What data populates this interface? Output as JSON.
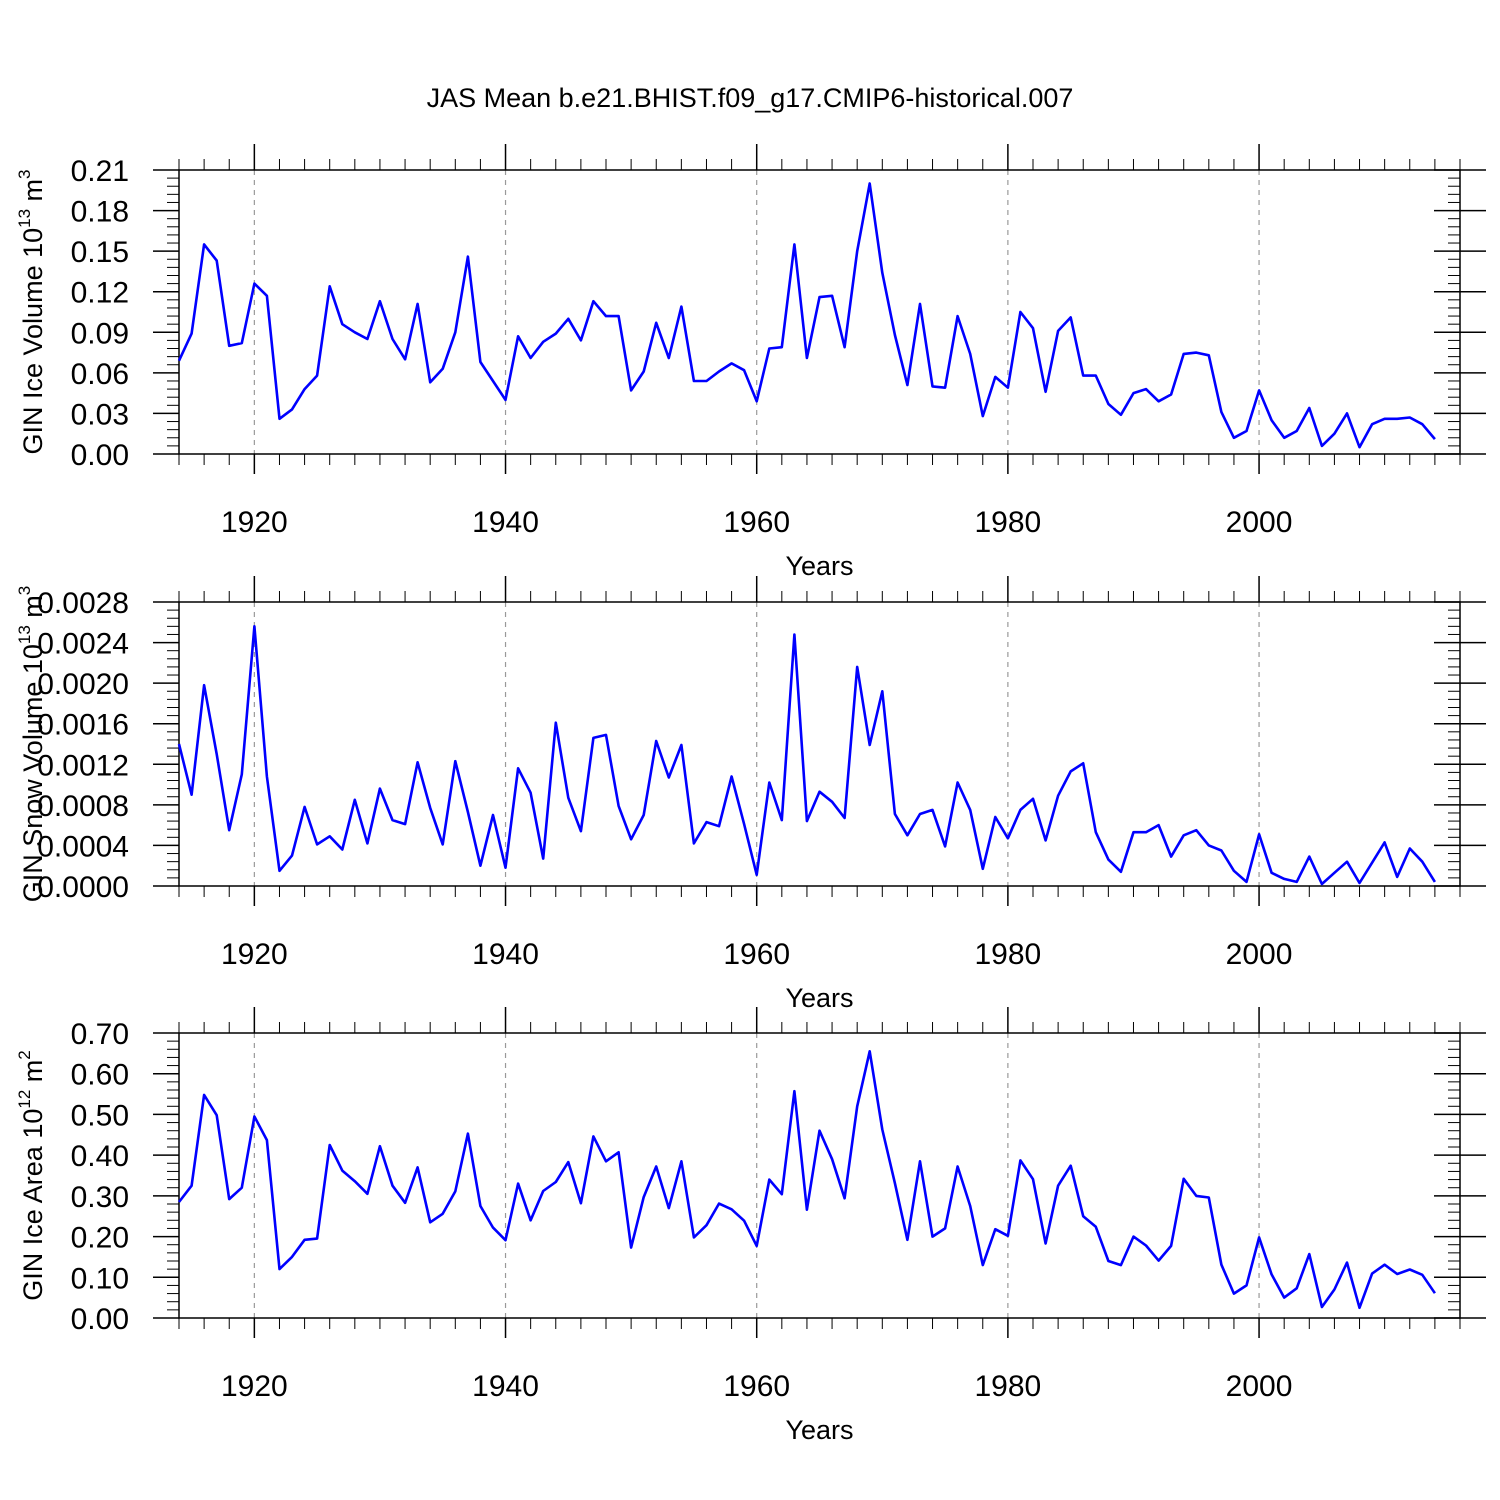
{
  "figure_title": "JAS Mean b.e21.BHIST.f09_g17.CMIP6-historical.007",
  "colors": {
    "series": "#0000ff",
    "axis": "#000000",
    "grid": "#999999"
  },
  "chart_data": [
    {
      "type": "line",
      "title": "",
      "xlabel": "Years",
      "ylabel": {
        "base": "GIN Ice Volume 10",
        "exp": "13",
        "unit": " m",
        "unit_exp": "3"
      },
      "xlim": [
        1914,
        2016
      ],
      "ylim": [
        0,
        0.21
      ],
      "xticks": [
        1920,
        1940,
        1960,
        1980,
        2000
      ],
      "yticks": [
        "0.00",
        "0.03",
        "0.06",
        "0.09",
        "0.12",
        "0.15",
        "0.18",
        "0.21"
      ],
      "grid": "vertical dashed at major x ticks",
      "x_start": 1914,
      "values": [
        0.069,
        0.089,
        0.155,
        0.143,
        0.08,
        0.082,
        0.126,
        0.117,
        0.026,
        0.033,
        0.048,
        0.058,
        0.124,
        0.096,
        0.09,
        0.085,
        0.113,
        0.085,
        0.07,
        0.111,
        0.053,
        0.063,
        0.09,
        0.146,
        0.068,
        0.054,
        0.04,
        0.087,
        0.071,
        0.083,
        0.089,
        0.1,
        0.084,
        0.113,
        0.102,
        0.102,
        0.047,
        0.061,
        0.097,
        0.071,
        0.109,
        0.054,
        0.054,
        0.061,
        0.067,
        0.062,
        0.039,
        0.078,
        0.079,
        0.155,
        0.071,
        0.116,
        0.117,
        0.079,
        0.15,
        0.2,
        0.134,
        0.088,
        0.051,
        0.111,
        0.05,
        0.049,
        0.102,
        0.074,
        0.028,
        0.057,
        0.049,
        0.105,
        0.093,
        0.046,
        0.091,
        0.101,
        0.058,
        0.058,
        0.037,
        0.029,
        0.045,
        0.048,
        0.039,
        0.044,
        0.074,
        0.075,
        0.073,
        0.031,
        0.012,
        0.017,
        0.047,
        0.025,
        0.012,
        0.017,
        0.034,
        0.006,
        0.015,
        0.03,
        0.005,
        0.022,
        0.026,
        0.026,
        0.027,
        0.022,
        0.011
      ]
    },
    {
      "type": "line",
      "title": "",
      "xlabel": "Years",
      "ylabel": {
        "base": "GIN Snow Volume 10",
        "exp": "13",
        "unit": " m",
        "unit_exp": "3"
      },
      "xlim": [
        1914,
        2016
      ],
      "ylim": [
        0,
        0.0028
      ],
      "xticks": [
        1920,
        1940,
        1960,
        1980,
        2000
      ],
      "yticks": [
        "0.0000",
        "0.0004",
        "0.0008",
        "0.0012",
        "0.0016",
        "0.0020",
        "0.0024",
        "0.0028"
      ],
      "grid": "vertical dashed at major x ticks",
      "x_start": 1914,
      "values": [
        0.0014,
        0.0009,
        0.00198,
        0.0013,
        0.00055,
        0.0011,
        0.00256,
        0.00108,
        0.00015,
        0.0003,
        0.00078,
        0.00041,
        0.00049,
        0.00036,
        0.00085,
        0.00042,
        0.00096,
        0.00065,
        0.00061,
        0.00122,
        0.00077,
        0.00041,
        0.00123,
        0.00073,
        0.0002,
        0.0007,
        0.00018,
        0.00116,
        0.00092,
        0.00027,
        0.00161,
        0.00087,
        0.00054,
        0.00146,
        0.00149,
        0.00079,
        0.00046,
        0.0007,
        0.00143,
        0.00107,
        0.00139,
        0.00042,
        0.00063,
        0.00059,
        0.00108,
        0.00061,
        0.00011,
        0.00102,
        0.00065,
        0.00248,
        0.00064,
        0.00093,
        0.00083,
        0.00067,
        0.00216,
        0.00139,
        0.00192,
        0.00071,
        0.0005,
        0.00071,
        0.00075,
        0.00039,
        0.00102,
        0.00075,
        0.00017,
        0.00068,
        0.00047,
        0.00075,
        0.00086,
        0.00045,
        0.00089,
        0.00113,
        0.00121,
        0.00053,
        0.00026,
        0.00014,
        0.00053,
        0.00053,
        0.0006,
        0.00029,
        0.0005,
        0.00055,
        0.0004,
        0.00035,
        0.00015,
        4e-05,
        0.00051,
        0.00013,
        7e-05,
        4e-05,
        0.00029,
        2e-05,
        0.00013,
        0.00024,
        3e-05,
        0.00023,
        0.00043,
        9e-05,
        0.00037,
        0.00024,
        4e-05
      ]
    },
    {
      "type": "line",
      "title": "",
      "xlabel": "Years",
      "ylabel": {
        "base": "GIN Ice Area 10",
        "exp": "12",
        "unit": " m",
        "unit_exp": "2"
      },
      "xlim": [
        1914,
        2016
      ],
      "ylim": [
        0,
        0.7
      ],
      "xticks": [
        1920,
        1940,
        1960,
        1980,
        2000
      ],
      "yticks": [
        "0.00",
        "0.10",
        "0.20",
        "0.30",
        "0.40",
        "0.50",
        "0.60",
        "0.70"
      ],
      "grid": "vertical dashed at major x ticks",
      "x_start": 1914,
      "values": [
        0.285,
        0.325,
        0.548,
        0.498,
        0.292,
        0.32,
        0.495,
        0.437,
        0.12,
        0.15,
        0.192,
        0.195,
        0.425,
        0.362,
        0.336,
        0.305,
        0.422,
        0.325,
        0.283,
        0.37,
        0.235,
        0.256,
        0.311,
        0.453,
        0.275,
        0.222,
        0.191,
        0.33,
        0.24,
        0.312,
        0.334,
        0.383,
        0.282,
        0.446,
        0.385,
        0.407,
        0.173,
        0.297,
        0.372,
        0.27,
        0.385,
        0.198,
        0.228,
        0.281,
        0.267,
        0.239,
        0.177,
        0.34,
        0.304,
        0.557,
        0.266,
        0.46,
        0.39,
        0.294,
        0.52,
        0.655,
        0.463,
        0.331,
        0.192,
        0.385,
        0.2,
        0.22,
        0.372,
        0.275,
        0.13,
        0.218,
        0.202,
        0.387,
        0.341,
        0.183,
        0.325,
        0.374,
        0.25,
        0.224,
        0.14,
        0.13,
        0.2,
        0.178,
        0.141,
        0.177,
        0.342,
        0.3,
        0.296,
        0.131,
        0.06,
        0.08,
        0.198,
        0.107,
        0.05,
        0.073,
        0.157,
        0.027,
        0.07,
        0.136,
        0.025,
        0.109,
        0.131,
        0.108,
        0.119,
        0.106,
        0.061
      ]
    }
  ]
}
